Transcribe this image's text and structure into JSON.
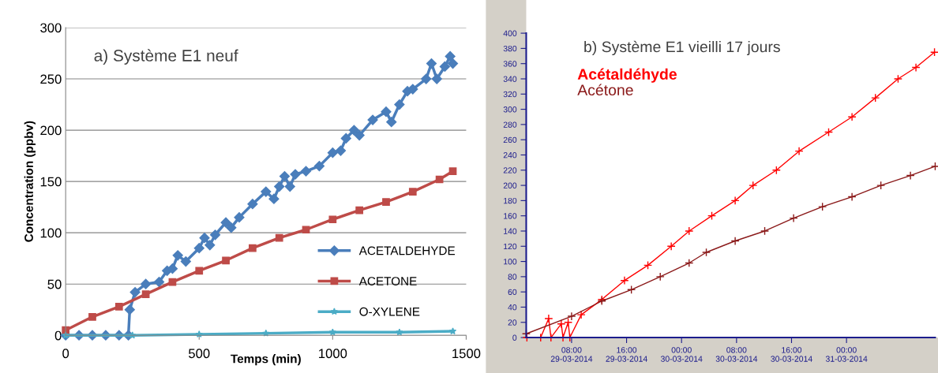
{
  "chart_data": [
    {
      "type": "line",
      "title": "a) Système E1 neuf",
      "xlabel": "Temps (min)",
      "ylabel": "Concentration (ppbv)",
      "xlim": [
        0,
        1500
      ],
      "xticks": [
        0,
        500,
        1000,
        1500
      ],
      "ylim": [
        0,
        300
      ],
      "yticks": [
        0,
        50,
        100,
        150,
        200,
        250,
        300
      ],
      "grid": "y",
      "legend": "bottom right",
      "series": [
        {
          "name": "ACETALDEHYDE",
          "color": "#4a7ebb",
          "marker": "diamond",
          "x": [
            0,
            50,
            100,
            150,
            200,
            235,
            240,
            260,
            300,
            350,
            380,
            400,
            420,
            450,
            500,
            520,
            540,
            560,
            600,
            620,
            650,
            700,
            750,
            780,
            800,
            820,
            840,
            860,
            900,
            950,
            1000,
            1030,
            1050,
            1080,
            1100,
            1150,
            1200,
            1220,
            1250,
            1280,
            1300,
            1350,
            1370,
            1390,
            1420,
            1440,
            1450
          ],
          "values": [
            0,
            0,
            0,
            0,
            0,
            0,
            25,
            42,
            50,
            52,
            63,
            65,
            78,
            72,
            85,
            95,
            88,
            98,
            110,
            105,
            115,
            128,
            140,
            133,
            145,
            155,
            145,
            157,
            160,
            165,
            178,
            180,
            192,
            200,
            195,
            210,
            218,
            208,
            225,
            238,
            240,
            250,
            265,
            250,
            262,
            272,
            265
          ]
        },
        {
          "name": "ACETONE",
          "color": "#be4b48",
          "marker": "square",
          "x": [
            0,
            100,
            200,
            300,
            400,
            500,
            600,
            700,
            800,
            900,
            1000,
            1100,
            1200,
            1300,
            1400,
            1450
          ],
          "values": [
            5,
            18,
            28,
            40,
            52,
            63,
            73,
            85,
            95,
            103,
            113,
            122,
            130,
            140,
            152,
            160
          ]
        },
        {
          "name": "O-XYLENE",
          "color": "#4bacc6",
          "marker": "star",
          "x": [
            0,
            250,
            500,
            750,
            1000,
            1250,
            1450
          ],
          "values": [
            0,
            0,
            1,
            2,
            3,
            3,
            4
          ]
        }
      ]
    },
    {
      "type": "line",
      "title": "b) Système E1 vieilli 17 jours",
      "xlim": [
        "2014-03-29T01:24",
        "2014-03-31T12:54"
      ],
      "xticks": [
        {
          "value": "2014-03-29T08:00",
          "label": "08:00\n29-03-2014"
        },
        {
          "value": "2014-03-29T16:00",
          "label": "16:00\n29-03-2014"
        },
        {
          "value": "2014-03-30T00:00",
          "label": "00:00\n30-03-2014"
        },
        {
          "value": "2014-03-30T08:00",
          "label": "08:00\n30-03-2014"
        },
        {
          "value": "2014-03-30T16:00",
          "label": "16:00\n30-03-2014"
        },
        {
          "value": "2014-03-31T00:00",
          "label": "00:00\n31-03-2014"
        }
      ],
      "ylim": [
        0,
        400
      ],
      "yticks": [
        0,
        20,
        40,
        60,
        80,
        100,
        120,
        140,
        160,
        180,
        200,
        220,
        240,
        260,
        280,
        300,
        320,
        340,
        360,
        380,
        400
      ],
      "grid": false,
      "legend": "top left",
      "series": [
        {
          "name": "Acétaldéhyde",
          "color": "#ff0000",
          "marker": "cross",
          "x": [
            "2014-03-29T01:30",
            "2014-03-29T03:30",
            "2014-03-29T04:40",
            "2014-03-29T05:00",
            "2014-03-29T06:30",
            "2014-03-29T06:45",
            "2014-03-29T07:30",
            "2014-03-29T07:45",
            "2014-03-29T09:24",
            "2014-03-29T12:24",
            "2014-03-29T15:42",
            "2014-03-29T19:06",
            "2014-03-29T22:30",
            "2014-03-30T01:06",
            "2014-03-30T04:24",
            "2014-03-30T07:48",
            "2014-03-30T10:24",
            "2014-03-30T13:48",
            "2014-03-30T17:06",
            "2014-03-30T21:24",
            "2014-03-31T00:48",
            "2014-03-31T04:12",
            "2014-03-31T07:30",
            "2014-03-31T10:06",
            "2014-03-31T12:48"
          ],
          "values": [
            0,
            0,
            25,
            0,
            18,
            0,
            20,
            0,
            30,
            50,
            75,
            95,
            120,
            140,
            160,
            180,
            200,
            220,
            245,
            270,
            290,
            315,
            340,
            355,
            375
          ]
        },
        {
          "name": "Acétone",
          "color": "#8b1a1a",
          "marker": "cross",
          "x": [
            "2014-03-29T01:24",
            "2014-03-29T08:00",
            "2014-03-29T12:24",
            "2014-03-29T16:42",
            "2014-03-29T20:54",
            "2014-03-30T01:06",
            "2014-03-30T03:36",
            "2014-03-30T07:48",
            "2014-03-30T12:06",
            "2014-03-30T16:18",
            "2014-03-30T20:30",
            "2014-03-31T00:48",
            "2014-03-31T05:00",
            "2014-03-31T09:18",
            "2014-03-31T12:54"
          ],
          "values": [
            5,
            28,
            48,
            63,
            80,
            98,
            112,
            127,
            140,
            157,
            172,
            185,
            200,
            213,
            225
          ]
        }
      ]
    }
  ]
}
